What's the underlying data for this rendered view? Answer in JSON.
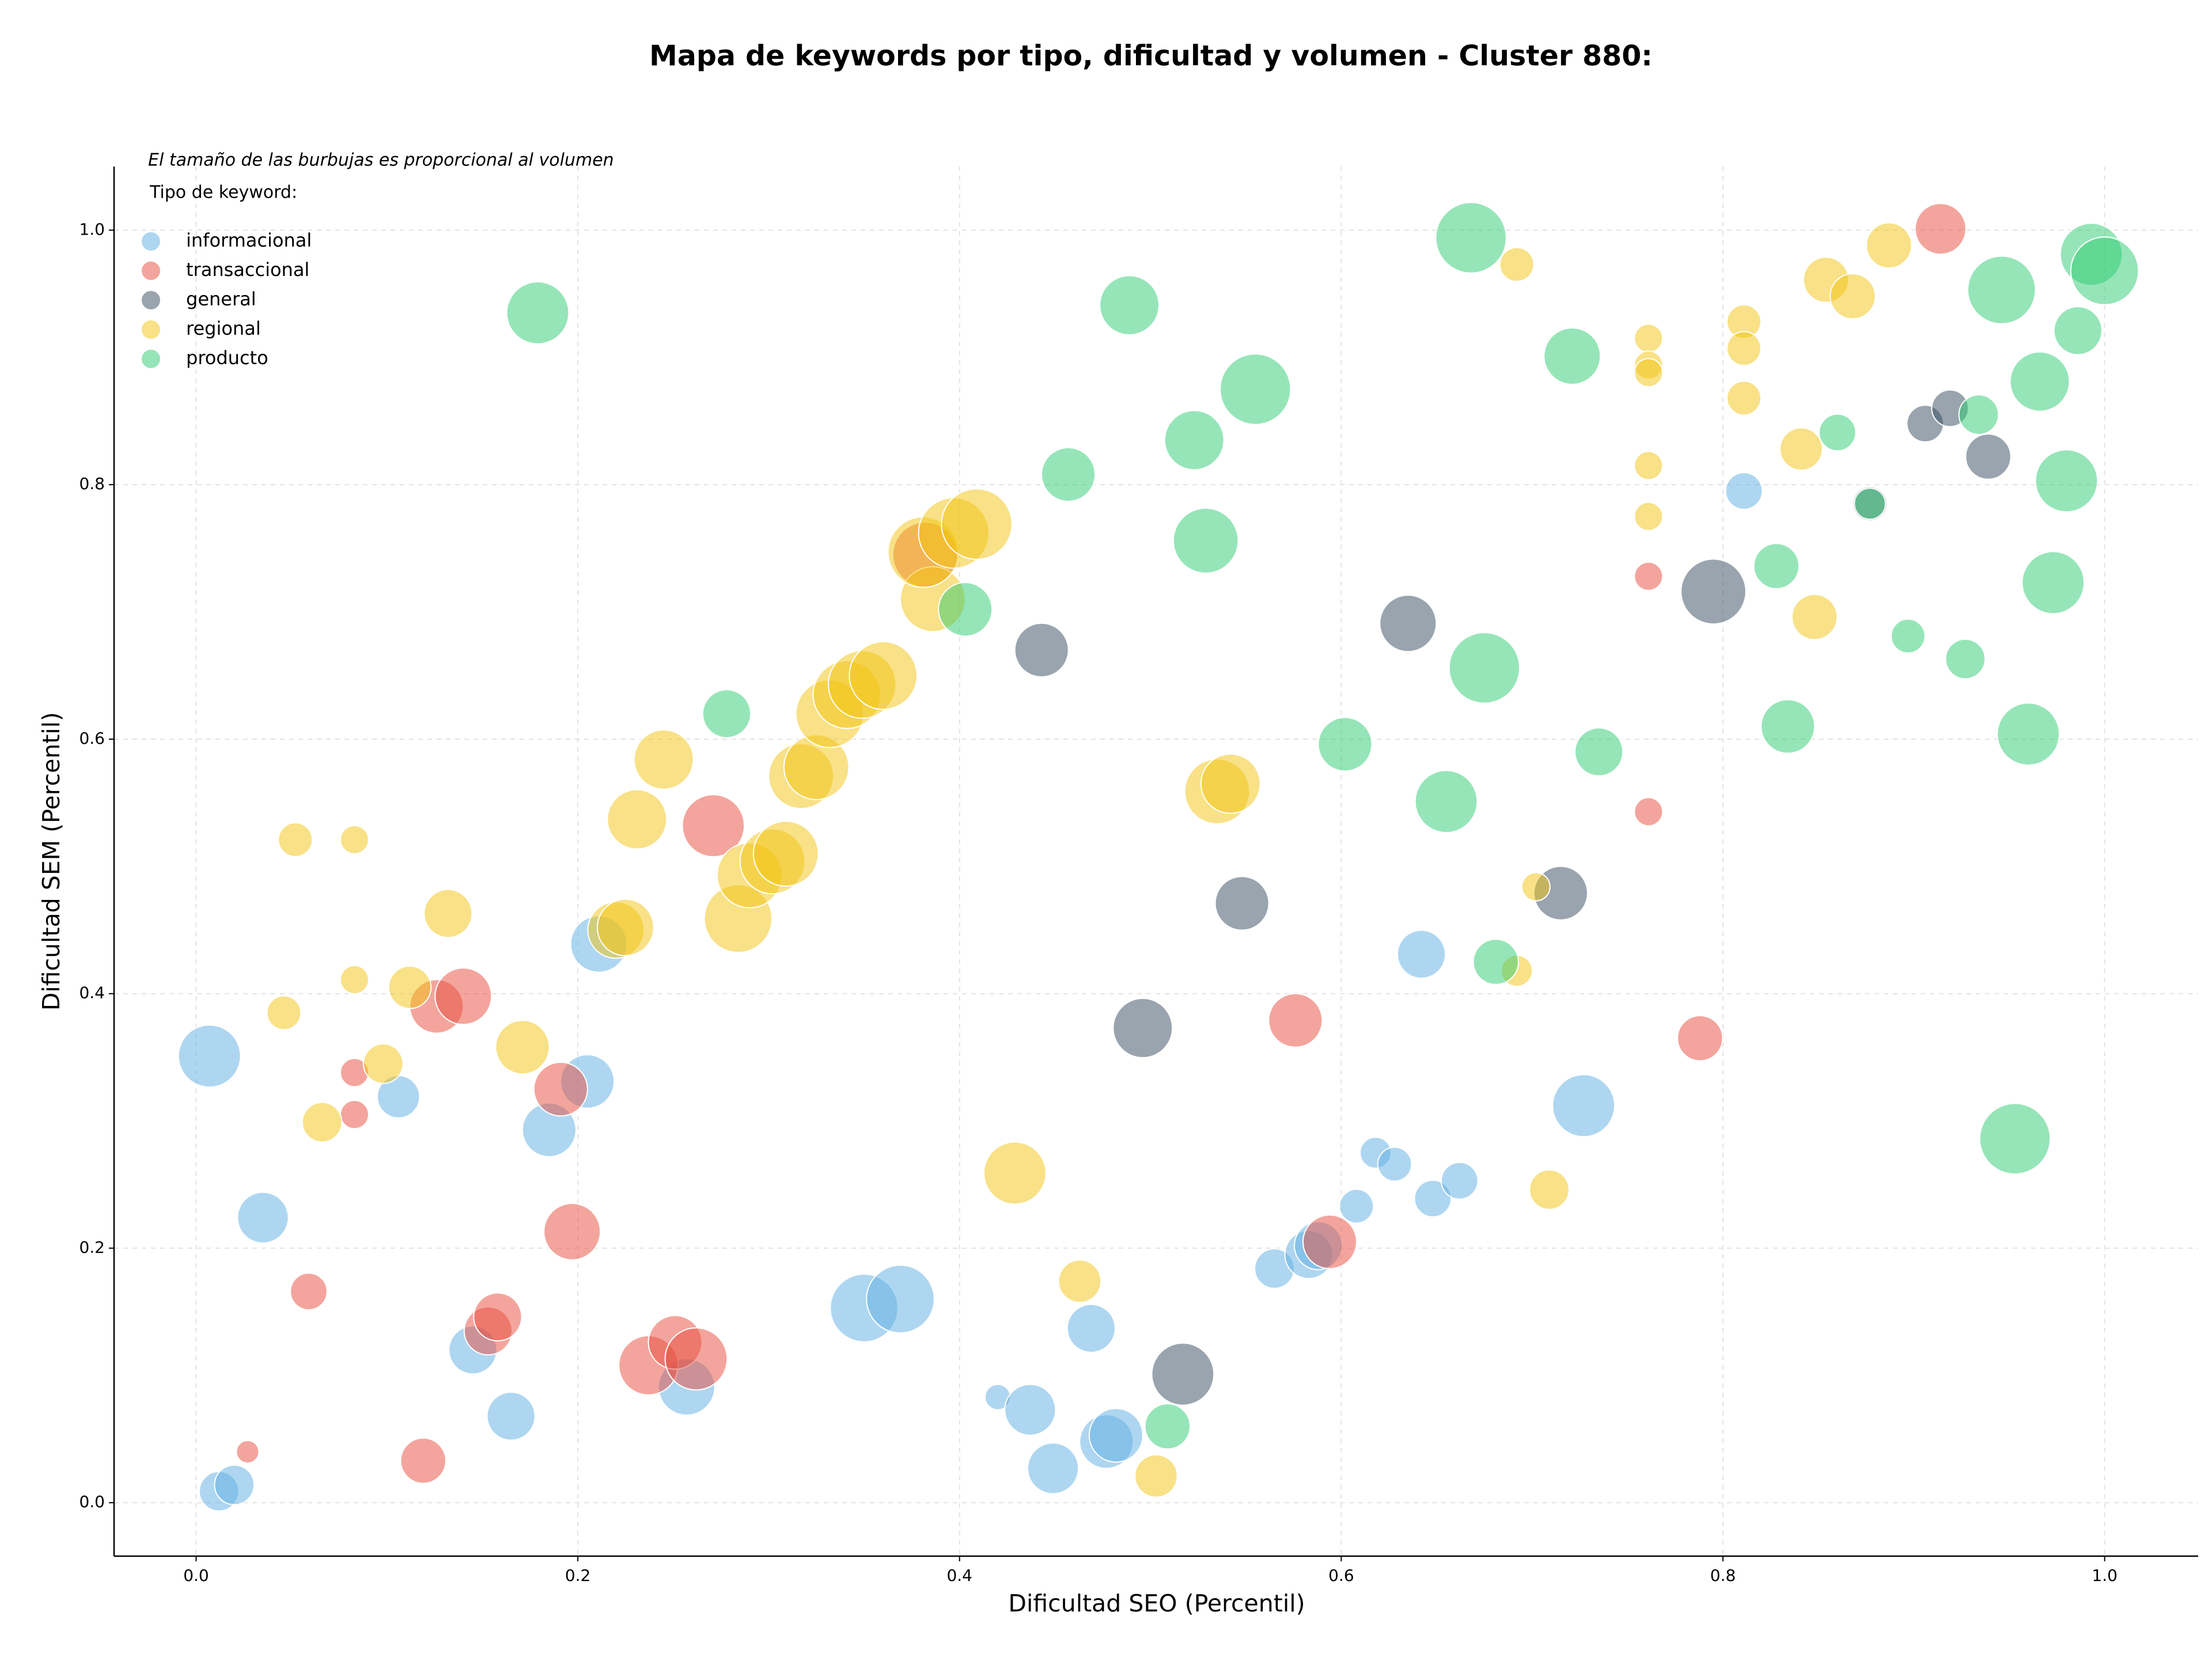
{
  "chart_data": {
    "type": "bubble",
    "title": "Mapa de keywords por tipo, dificultad y volumen - Cluster 880:",
    "note": "El tamaño de las burbujas es proporcional al volumen",
    "legend_title": "Tipo de keyword:",
    "legend": "upper left",
    "grid": true,
    "x_label": "Dificultad SEO (Percentil)",
    "y_label": "Dificultad SEM (Percentil)",
    "xlim": [
      -0.043,
      1.049
    ],
    "ylim": [
      -0.042,
      1.05
    ],
    "xticks": [
      {
        "value": 0,
        "label": "0.0"
      },
      0.2,
      0.4,
      0.6,
      0.8,
      {
        "value": 1,
        "label": "1.0"
      }
    ],
    "yticks": [
      {
        "value": 0,
        "label": "0.0"
      },
      0.2,
      0.4,
      0.6,
      0.8,
      {
        "value": 1,
        "label": "1.0"
      }
    ],
    "series": [
      {
        "name": "informacional",
        "color": "#5dade2",
        "x": [
          0.007,
          0.012,
          0.02,
          0.035,
          0.106,
          0.145,
          0.165,
          0.185,
          0.205,
          0.211,
          0.257,
          0.35,
          0.369,
          0.42,
          0.437,
          0.449,
          0.469,
          0.477,
          0.482,
          0.565,
          0.583,
          0.588,
          0.608,
          0.618,
          0.628,
          0.648,
          0.662,
          0.642,
          0.727,
          0.811
        ],
        "values": [
          0.351,
          0.009,
          0.014,
          0.224,
          0.319,
          0.12,
          0.068,
          0.293,
          0.331,
          0.439,
          0.091,
          0.153,
          0.16,
          0.083,
          0.073,
          0.027,
          0.137,
          0.048,
          0.053,
          0.184,
          0.195,
          0.202,
          0.233,
          0.275,
          0.266,
          0.239,
          0.253,
          0.431,
          0.312,
          0.795
        ],
        "sizes": [
          484,
          196,
          196,
          324,
          225,
          289,
          289,
          361,
          361,
          400,
          400,
          576,
          576,
          81,
          324,
          324,
          289,
          361,
          361,
          196,
          289,
          289,
          144,
          121,
          144,
          169,
          169,
          289,
          484,
          169
        ]
      },
      {
        "name": "transaccional",
        "color": "#e74c3c",
        "x": [
          0.027,
          0.059,
          0.083,
          0.083,
          0.119,
          0.126,
          0.14,
          0.153,
          0.158,
          0.191,
          0.197,
          0.237,
          0.251,
          0.262,
          0.271,
          0.382,
          0.576,
          0.594,
          0.761,
          0.761,
          0.788,
          0.914
        ],
        "values": [
          0.04,
          0.166,
          0.338,
          0.305,
          0.033,
          0.39,
          0.398,
          0.135,
          0.146,
          0.325,
          0.213,
          0.108,
          0.126,
          0.113,
          0.532,
          0.745,
          0.379,
          0.205,
          0.728,
          0.543,
          0.365,
          1.001
        ],
        "sizes": [
          64,
          169,
          100,
          100,
          256,
          361,
          400,
          289,
          289,
          361,
          400,
          441,
          361,
          484,
          484,
          529,
          361,
          361,
          100,
          100,
          256,
          324
        ]
      },
      {
        "name": "general",
        "color": "#34495e",
        "x": [
          0.443,
          0.517,
          0.496,
          0.548,
          0.635,
          0.715,
          0.795,
          0.906,
          0.919,
          0.939,
          0.877
        ],
        "values": [
          0.67,
          0.101,
          0.373,
          0.471,
          0.691,
          0.479,
          0.716,
          0.848,
          0.86,
          0.822,
          0.785
        ],
        "sizes": [
          361,
          484,
          441,
          361,
          400,
          361,
          529,
          169,
          169,
          256,
          144
        ]
      },
      {
        "name": "regional",
        "color": "#f1c40f",
        "x": [
          0.046,
          0.052,
          0.066,
          0.083,
          0.083,
          0.098,
          0.112,
          0.132,
          0.171,
          0.22,
          0.225,
          0.231,
          0.245,
          0.284,
          0.29,
          0.302,
          0.309,
          0.317,
          0.325,
          0.332,
          0.341,
          0.349,
          0.36,
          0.386,
          0.381,
          0.397,
          0.409,
          0.429,
          0.463,
          0.503,
          0.535,
          0.542,
          0.692,
          0.692,
          0.702,
          0.709,
          0.761,
          0.761,
          0.761,
          0.761,
          0.761,
          0.811,
          0.811,
          0.811,
          0.841,
          0.848,
          0.854,
          0.868,
          0.887
        ],
        "values": [
          0.385,
          0.521,
          0.299,
          0.521,
          0.411,
          0.345,
          0.405,
          0.463,
          0.358,
          0.45,
          0.452,
          0.537,
          0.584,
          0.459,
          0.493,
          0.504,
          0.51,
          0.571,
          0.578,
          0.62,
          0.635,
          0.643,
          0.65,
          0.71,
          0.747,
          0.762,
          0.769,
          0.259,
          0.174,
          0.021,
          0.559,
          0.565,
          0.973,
          0.418,
          0.484,
          0.246,
          0.915,
          0.894,
          0.888,
          0.815,
          0.775,
          0.928,
          0.907,
          0.868,
          0.828,
          0.696,
          0.961,
          0.948,
          0.988
        ],
        "sizes": [
          144,
          144,
          196,
          100,
          100,
          196,
          225,
          289,
          361,
          400,
          400,
          441,
          441,
          576,
          529,
          529,
          529,
          529,
          529,
          576,
          576,
          576,
          576,
          529,
          625,
          625,
          625,
          484,
          225,
          225,
          529,
          441,
          144,
          121,
          100,
          196,
          100,
          100,
          100,
          100,
          100,
          144,
          144,
          144,
          225,
          256,
          256,
          256,
          256
        ]
      },
      {
        "name": "producto",
        "color": "#2ecc71",
        "x": [
          0.179,
          0.278,
          0.403,
          0.457,
          0.489,
          0.509,
          0.523,
          0.529,
          0.555,
          0.602,
          0.655,
          0.668,
          0.675,
          0.681,
          0.721,
          0.735,
          0.828,
          0.834,
          0.86,
          0.877,
          0.897,
          0.927,
          0.934,
          0.946,
          0.953,
          0.96,
          0.966,
          0.973,
          0.98,
          0.986,
          0.993,
          1.0
        ],
        "values": [
          0.935,
          0.62,
          0.702,
          0.808,
          0.941,
          0.06,
          0.835,
          0.756,
          0.875,
          0.596,
          0.551,
          0.994,
          0.656,
          0.425,
          0.901,
          0.59,
          0.736,
          0.61,
          0.841,
          0.785,
          0.681,
          0.663,
          0.855,
          0.953,
          0.286,
          0.604,
          0.881,
          0.723,
          0.803,
          0.921,
          0.981,
          0.968
        ],
        "sizes": [
          484,
          289,
          361,
          361,
          441,
          256,
          441,
          529,
          625,
          361,
          484,
          625,
          625,
          256,
          400,
          289,
          256,
          361,
          169,
          121,
          144,
          196,
          196,
          576,
          625,
          484,
          441,
          484,
          484,
          289,
          484,
          576
        ]
      }
    ]
  }
}
